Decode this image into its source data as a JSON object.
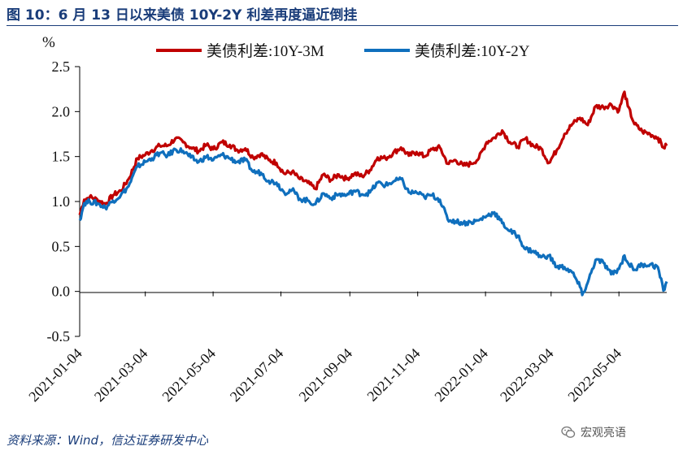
{
  "header": {
    "title": "图 10：6 月 13 日以来美债 10Y-2Y 利差再度逼近倒挂"
  },
  "footer": {
    "source": "资料来源：Wind，信达证券研发中心",
    "watermark": "宏观亮语"
  },
  "icons": {
    "watermark": "wechat-icon"
  },
  "chart_data": {
    "type": "line",
    "ylabel": "%",
    "ylim": [
      -0.5,
      2.5
    ],
    "yticks": [
      2.5,
      2.0,
      1.5,
      1.0,
      0.5,
      0.0,
      -0.5
    ],
    "ytick_labels": [
      "2.5",
      "2.0",
      "1.5",
      "1.0",
      "0.5",
      "0.0",
      "-0.5"
    ],
    "xlim": [
      "2021-01-04",
      "2022-06-16"
    ],
    "xticks": [
      "2021-01-04",
      "2021-03-04",
      "2021-05-04",
      "2021-07-04",
      "2021-09-04",
      "2021-11-04",
      "2022-01-04",
      "2022-03-04",
      "2022-05-04"
    ],
    "grid": false,
    "legend_position": "top",
    "series": [
      {
        "name": "美债利差:10Y-3M",
        "color": "#c00000",
        "points": [
          [
            "2021-01-04",
            0.85
          ],
          [
            "2021-01-08",
            1.02
          ],
          [
            "2021-01-13",
            1.05
          ],
          [
            "2021-01-20",
            1.02
          ],
          [
            "2021-01-27",
            0.97
          ],
          [
            "2021-02-03",
            1.07
          ],
          [
            "2021-02-10",
            1.12
          ],
          [
            "2021-02-17",
            1.25
          ],
          [
            "2021-02-25",
            1.48
          ],
          [
            "2021-03-04",
            1.52
          ],
          [
            "2021-03-10",
            1.57
          ],
          [
            "2021-03-17",
            1.62
          ],
          [
            "2021-03-24",
            1.62
          ],
          [
            "2021-03-31",
            1.7
          ],
          [
            "2021-04-07",
            1.66
          ],
          [
            "2021-04-14",
            1.6
          ],
          [
            "2021-04-21",
            1.56
          ],
          [
            "2021-04-28",
            1.63
          ],
          [
            "2021-05-04",
            1.58
          ],
          [
            "2021-05-12",
            1.66
          ],
          [
            "2021-05-19",
            1.63
          ],
          [
            "2021-05-26",
            1.57
          ],
          [
            "2021-06-02",
            1.59
          ],
          [
            "2021-06-09",
            1.49
          ],
          [
            "2021-06-16",
            1.53
          ],
          [
            "2021-06-23",
            1.46
          ],
          [
            "2021-06-30",
            1.43
          ],
          [
            "2021-07-07",
            1.31
          ],
          [
            "2021-07-14",
            1.33
          ],
          [
            "2021-07-21",
            1.25
          ],
          [
            "2021-07-28",
            1.21
          ],
          [
            "2021-08-04",
            1.14
          ],
          [
            "2021-08-11",
            1.3
          ],
          [
            "2021-08-18",
            1.24
          ],
          [
            "2021-08-25",
            1.3
          ],
          [
            "2021-09-01",
            1.25
          ],
          [
            "2021-09-08",
            1.31
          ],
          [
            "2021-09-15",
            1.28
          ],
          [
            "2021-09-22",
            1.35
          ],
          [
            "2021-09-29",
            1.49
          ],
          [
            "2021-10-06",
            1.48
          ],
          [
            "2021-10-13",
            1.54
          ],
          [
            "2021-10-20",
            1.6
          ],
          [
            "2021-10-27",
            1.51
          ],
          [
            "2021-11-03",
            1.55
          ],
          [
            "2021-11-10",
            1.5
          ],
          [
            "2021-11-17",
            1.58
          ],
          [
            "2021-11-24",
            1.6
          ],
          [
            "2021-12-01",
            1.42
          ],
          [
            "2021-12-08",
            1.46
          ],
          [
            "2021-12-15",
            1.4
          ],
          [
            "2021-12-22",
            1.42
          ],
          [
            "2021-12-29",
            1.48
          ],
          [
            "2022-01-05",
            1.66
          ],
          [
            "2022-01-12",
            1.71
          ],
          [
            "2022-01-19",
            1.79
          ],
          [
            "2022-01-26",
            1.66
          ],
          [
            "2022-02-02",
            1.61
          ],
          [
            "2022-02-09",
            1.7
          ],
          [
            "2022-02-16",
            1.62
          ],
          [
            "2022-02-23",
            1.59
          ],
          [
            "2022-03-02",
            1.43
          ],
          [
            "2022-03-09",
            1.57
          ],
          [
            "2022-03-16",
            1.75
          ],
          [
            "2022-03-23",
            1.86
          ],
          [
            "2022-03-30",
            1.93
          ],
          [
            "2022-04-06",
            1.85
          ],
          [
            "2022-04-13",
            2.06
          ],
          [
            "2022-04-20",
            2.05
          ],
          [
            "2022-04-27",
            2.08
          ],
          [
            "2022-05-04",
            2.01
          ],
          [
            "2022-05-09",
            2.22
          ],
          [
            "2022-05-12",
            2.06
          ],
          [
            "2022-05-18",
            1.86
          ],
          [
            "2022-05-25",
            1.78
          ],
          [
            "2022-06-01",
            1.75
          ],
          [
            "2022-06-08",
            1.71
          ],
          [
            "2022-06-13",
            1.6
          ],
          [
            "2022-06-16",
            1.62
          ]
        ]
      },
      {
        "name": "美债利差:10Y-2Y",
        "color": "#0f6fbd",
        "points": [
          [
            "2021-01-04",
            0.79
          ],
          [
            "2021-01-08",
            0.98
          ],
          [
            "2021-01-13",
            1.0
          ],
          [
            "2021-01-20",
            0.98
          ],
          [
            "2021-01-27",
            0.93
          ],
          [
            "2021-02-03",
            1.01
          ],
          [
            "2021-02-10",
            1.07
          ],
          [
            "2021-02-17",
            1.17
          ],
          [
            "2021-02-25",
            1.39
          ],
          [
            "2021-03-04",
            1.44
          ],
          [
            "2021-03-10",
            1.48
          ],
          [
            "2021-03-17",
            1.54
          ],
          [
            "2021-03-24",
            1.51
          ],
          [
            "2021-03-31",
            1.58
          ],
          [
            "2021-04-07",
            1.56
          ],
          [
            "2021-04-14",
            1.49
          ],
          [
            "2021-04-21",
            1.44
          ],
          [
            "2021-04-28",
            1.5
          ],
          [
            "2021-05-04",
            1.46
          ],
          [
            "2021-05-12",
            1.52
          ],
          [
            "2021-05-19",
            1.48
          ],
          [
            "2021-05-26",
            1.44
          ],
          [
            "2021-06-02",
            1.46
          ],
          [
            "2021-06-09",
            1.33
          ],
          [
            "2021-06-16",
            1.32
          ],
          [
            "2021-06-23",
            1.23
          ],
          [
            "2021-06-30",
            1.21
          ],
          [
            "2021-07-07",
            1.1
          ],
          [
            "2021-07-14",
            1.13
          ],
          [
            "2021-07-21",
            1.03
          ],
          [
            "2021-07-28",
            1.01
          ],
          [
            "2021-08-04",
            0.97
          ],
          [
            "2021-08-11",
            1.09
          ],
          [
            "2021-08-18",
            1.04
          ],
          [
            "2021-08-25",
            1.08
          ],
          [
            "2021-09-01",
            1.07
          ],
          [
            "2021-09-08",
            1.12
          ],
          [
            "2021-09-15",
            1.08
          ],
          [
            "2021-09-22",
            1.1
          ],
          [
            "2021-09-29",
            1.21
          ],
          [
            "2021-10-06",
            1.18
          ],
          [
            "2021-10-13",
            1.22
          ],
          [
            "2021-10-20",
            1.25
          ],
          [
            "2021-10-27",
            1.1
          ],
          [
            "2021-11-03",
            1.1
          ],
          [
            "2021-11-10",
            1.05
          ],
          [
            "2021-11-17",
            1.07
          ],
          [
            "2021-11-24",
            1.02
          ],
          [
            "2021-12-01",
            0.8
          ],
          [
            "2021-12-08",
            0.78
          ],
          [
            "2021-12-15",
            0.76
          ],
          [
            "2021-12-22",
            0.77
          ],
          [
            "2021-12-29",
            0.79
          ],
          [
            "2022-01-05",
            0.84
          ],
          [
            "2022-01-12",
            0.88
          ],
          [
            "2022-01-19",
            0.76
          ],
          [
            "2022-01-26",
            0.67
          ],
          [
            "2022-02-02",
            0.62
          ],
          [
            "2022-02-09",
            0.47
          ],
          [
            "2022-02-16",
            0.45
          ],
          [
            "2022-02-23",
            0.38
          ],
          [
            "2022-03-02",
            0.4
          ],
          [
            "2022-03-09",
            0.27
          ],
          [
            "2022-03-16",
            0.27
          ],
          [
            "2022-03-23",
            0.21
          ],
          [
            "2022-03-30",
            0.05
          ],
          [
            "2022-04-01",
            -0.04
          ],
          [
            "2022-04-06",
            0.1
          ],
          [
            "2022-04-13",
            0.35
          ],
          [
            "2022-04-20",
            0.32
          ],
          [
            "2022-04-27",
            0.19
          ],
          [
            "2022-05-04",
            0.25
          ],
          [
            "2022-05-09",
            0.4
          ],
          [
            "2022-05-12",
            0.32
          ],
          [
            "2022-05-18",
            0.24
          ],
          [
            "2022-05-25",
            0.3
          ],
          [
            "2022-06-01",
            0.3
          ],
          [
            "2022-06-08",
            0.27
          ],
          [
            "2022-06-13",
            0.01
          ],
          [
            "2022-06-16",
            0.11
          ]
        ]
      }
    ]
  }
}
